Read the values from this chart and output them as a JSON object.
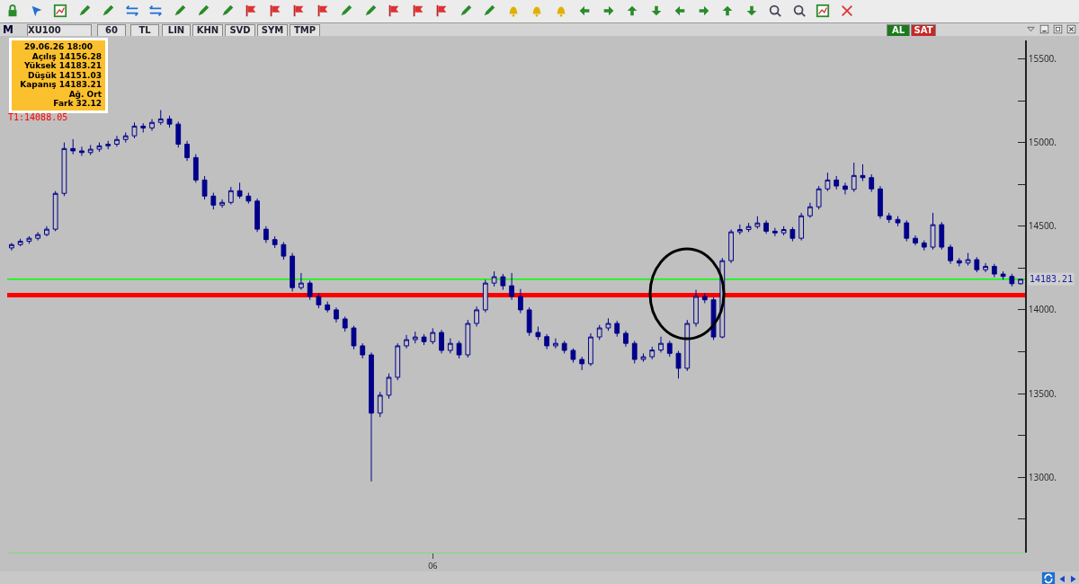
{
  "chart_data": {
    "type": "candlestick",
    "title": "XU100",
    "annotations": [
      "29.06.26 18:00",
      "Açılış 14156.28",
      "Yüksek 14183.21",
      "Düşük 14151.03",
      "Kapanış 14183.21",
      "Ağ. Ort",
      "Fark 32.12",
      "M",
      "60",
      "TL",
      "LIN",
      "KHN",
      "SVD",
      "SYM",
      "TMP",
      "AL",
      "SAT"
    ],
    "categories": [
      null,
      null,
      null,
      null,
      null,
      null,
      null,
      null,
      null,
      null,
      null,
      null,
      null,
      null,
      null,
      null,
      null,
      null,
      null,
      null,
      null,
      null,
      null,
      null,
      null,
      null,
      null,
      null,
      null,
      null,
      null,
      null,
      null,
      null,
      null,
      null,
      null,
      null,
      null,
      null,
      null,
      null,
      null,
      null,
      null,
      null,
      null,
      null,
      "06",
      null,
      null,
      null,
      null,
      null,
      null,
      null,
      null,
      null,
      null,
      null,
      null,
      null,
      null,
      null,
      null,
      null,
      null,
      null,
      null,
      null,
      null,
      null,
      null,
      null,
      null,
      null,
      null,
      null,
      null,
      null,
      null,
      null,
      null,
      null,
      null,
      null,
      null,
      null,
      null,
      null,
      null,
      null,
      null,
      null,
      null,
      null,
      null,
      null,
      null,
      null,
      null,
      null,
      null,
      null,
      null,
      null,
      null,
      null,
      null,
      null,
      null,
      null,
      null,
      null,
      null,
      null
    ],
    "series": [
      {
        "color": "#00008b",
        "ohlc": [
          [
            14370,
            14400,
            14355,
            14390
          ],
          [
            14390,
            14425,
            14380,
            14410
          ],
          [
            14410,
            14440,
            14395,
            14428
          ],
          [
            14428,
            14465,
            14415,
            14450
          ],
          [
            14450,
            14500,
            14440,
            14482
          ],
          [
            14482,
            14710,
            14470,
            14696
          ],
          [
            14696,
            15000,
            14680,
            14964
          ],
          [
            14964,
            15020,
            14930,
            14950
          ],
          [
            14950,
            14975,
            14920,
            14940
          ],
          [
            14940,
            14985,
            14925,
            14960
          ],
          [
            14960,
            15000,
            14945,
            14980
          ],
          [
            14980,
            15010,
            14960,
            14990
          ],
          [
            14990,
            15040,
            14975,
            15018
          ],
          [
            15018,
            15060,
            15000,
            15040
          ],
          [
            15040,
            15120,
            15025,
            15098
          ],
          [
            15098,
            15115,
            15060,
            15087
          ],
          [
            15087,
            15140,
            15070,
            15120
          ],
          [
            15120,
            15194,
            15105,
            15141
          ],
          [
            15141,
            15160,
            15090,
            15110
          ],
          [
            15110,
            15125,
            14970,
            14990
          ],
          [
            14990,
            15010,
            14890,
            14910
          ],
          [
            14910,
            14930,
            14760,
            14776
          ],
          [
            14776,
            14800,
            14660,
            14680
          ],
          [
            14680,
            14700,
            14600,
            14626
          ],
          [
            14626,
            14660,
            14610,
            14642
          ],
          [
            14642,
            14735,
            14630,
            14712
          ],
          [
            14712,
            14760,
            14665,
            14680
          ],
          [
            14680,
            14700,
            14635,
            14650
          ],
          [
            14650,
            14665,
            14465,
            14482
          ],
          [
            14482,
            14500,
            14400,
            14420
          ],
          [
            14420,
            14440,
            14370,
            14390
          ],
          [
            14390,
            14405,
            14300,
            14321
          ],
          [
            14321,
            14340,
            14110,
            14133
          ],
          [
            14133,
            14220,
            14120,
            14160
          ],
          [
            14160,
            14175,
            14060,
            14080
          ],
          [
            14080,
            14100,
            14010,
            14030
          ],
          [
            14030,
            14050,
            13985,
            14000
          ],
          [
            14000,
            14015,
            13925,
            13946
          ],
          [
            13946,
            13960,
            13870,
            13892
          ],
          [
            13892,
            13905,
            13765,
            13785
          ],
          [
            13785,
            13800,
            13710,
            13731
          ],
          [
            13731,
            13745,
            12975,
            13383
          ],
          [
            13383,
            13510,
            13360,
            13490
          ],
          [
            13490,
            13620,
            13470,
            13597
          ],
          [
            13597,
            13800,
            13580,
            13785
          ],
          [
            13785,
            13850,
            13770,
            13822
          ],
          [
            13822,
            13870,
            13800,
            13838
          ],
          [
            13838,
            13855,
            13790,
            13810
          ],
          [
            13810,
            13890,
            13795,
            13865
          ],
          [
            13865,
            13880,
            13740,
            13758
          ],
          [
            13758,
            13830,
            13740,
            13800
          ],
          [
            13800,
            13815,
            13710,
            13731
          ],
          [
            13731,
            13940,
            13715,
            13919
          ],
          [
            13919,
            14020,
            13900,
            14000
          ],
          [
            14000,
            14180,
            13985,
            14160
          ],
          [
            14160,
            14230,
            14140,
            14198
          ],
          [
            14198,
            14215,
            14120,
            14144
          ],
          [
            14144,
            14220,
            14060,
            14080
          ],
          [
            14080,
            14125,
            13980,
            14000
          ],
          [
            14000,
            14015,
            13845,
            13865
          ],
          [
            13865,
            13900,
            13820,
            13840
          ],
          [
            13840,
            13855,
            13765,
            13785
          ],
          [
            13785,
            13830,
            13770,
            13800
          ],
          [
            13800,
            13815,
            13740,
            13758
          ],
          [
            13758,
            13770,
            13685,
            13704
          ],
          [
            13704,
            13720,
            13640,
            13678
          ],
          [
            13678,
            13860,
            13665,
            13838
          ],
          [
            13838,
            13910,
            13820,
            13892
          ],
          [
            13892,
            13950,
            13875,
            13919
          ],
          [
            13919,
            13935,
            13840,
            13860
          ],
          [
            13860,
            13875,
            13780,
            13800
          ],
          [
            13800,
            13815,
            13680,
            13704
          ],
          [
            13704,
            13740,
            13690,
            13720
          ],
          [
            13720,
            13780,
            13705,
            13760
          ],
          [
            13760,
            13840,
            13745,
            13800
          ],
          [
            13800,
            13815,
            13720,
            13740
          ],
          [
            13740,
            13755,
            13590,
            13651
          ],
          [
            13651,
            13940,
            13635,
            13919
          ],
          [
            13919,
            14120,
            13900,
            14080
          ],
          [
            14080,
            14100,
            14040,
            14060
          ],
          [
            14060,
            14075,
            13820,
            13838
          ],
          [
            13838,
            14310,
            13830,
            14294
          ],
          [
            14294,
            14480,
            14280,
            14466
          ],
          [
            14466,
            14510,
            14450,
            14480
          ],
          [
            14480,
            14520,
            14465,
            14498
          ],
          [
            14498,
            14560,
            14485,
            14519
          ],
          [
            14519,
            14535,
            14455,
            14470
          ],
          [
            14470,
            14490,
            14440,
            14460
          ],
          [
            14460,
            14500,
            14445,
            14480
          ],
          [
            14480,
            14495,
            14410,
            14428
          ],
          [
            14428,
            14580,
            14415,
            14562
          ],
          [
            14562,
            14640,
            14550,
            14616
          ],
          [
            14616,
            14740,
            14600,
            14723
          ],
          [
            14723,
            14820,
            14710,
            14776
          ],
          [
            14776,
            14800,
            14720,
            14740
          ],
          [
            14740,
            14760,
            14690,
            14720
          ],
          [
            14720,
            14880,
            14705,
            14803
          ],
          [
            14803,
            14870,
            14770,
            14790
          ],
          [
            14790,
            14810,
            14705,
            14723
          ],
          [
            14723,
            14740,
            14545,
            14562
          ],
          [
            14562,
            14580,
            14520,
            14540
          ],
          [
            14540,
            14560,
            14500,
            14520
          ],
          [
            14520,
            14535,
            14410,
            14428
          ],
          [
            14428,
            14445,
            14385,
            14400
          ],
          [
            14400,
            14415,
            14355,
            14375
          ],
          [
            14375,
            14580,
            14360,
            14509
          ],
          [
            14509,
            14525,
            14360,
            14375
          ],
          [
            14375,
            14390,
            14275,
            14294
          ],
          [
            14294,
            14310,
            14260,
            14280
          ],
          [
            14280,
            14340,
            14265,
            14300
          ],
          [
            14300,
            14315,
            14225,
            14240
          ],
          [
            14240,
            14280,
            14225,
            14260
          ],
          [
            14260,
            14275,
            14195,
            14214
          ],
          [
            14214,
            14230,
            14180,
            14200
          ],
          [
            14200,
            14215,
            14140,
            14156.28
          ],
          [
            14156.28,
            14183.21,
            14151.03,
            14183.21
          ]
        ]
      }
    ],
    "ylim": [
      12550,
      15610
    ],
    "yticks": [
      {
        "value": 12750,
        "label": null
      },
      {
        "value": 13000,
        "label": "13000."
      },
      {
        "value": 13250,
        "label": null
      },
      {
        "value": 13500,
        "label": "13500."
      },
      {
        "value": 13750,
        "label": null
      },
      {
        "value": 14000,
        "label": "14000."
      },
      {
        "value": 14250,
        "label": null
      },
      {
        "value": 14500,
        "label": "14500."
      },
      {
        "value": 14750,
        "label": null
      },
      {
        "value": 15000,
        "label": "15000."
      },
      {
        "value": 15250,
        "label": null
      },
      {
        "value": 15500,
        "label": "15500."
      }
    ],
    "ref_lines": [
      {
        "axis": "y",
        "value": 14088.05,
        "label": "T1:14088.05",
        "color": "#ff0000"
      },
      {
        "axis": "y",
        "value": 14183.21,
        "label": "14183.21",
        "color": "#00ff00"
      }
    ],
    "grid": false
  }
}
